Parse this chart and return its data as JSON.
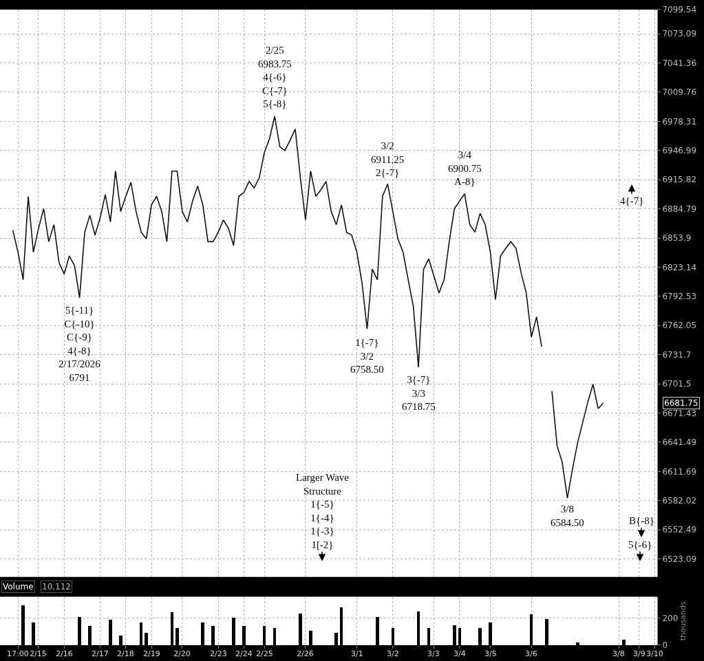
{
  "chart_data": [
    {
      "type": "line",
      "log": "y",
      "grid": true,
      "tick_labels": "y",
      "categories": [
        null,
        "17:00",
        null,
        null,
        null,
        "2/15",
        null,
        null,
        null,
        null,
        "2/16",
        null,
        null,
        null,
        null,
        null,
        null,
        "2/17",
        null,
        null,
        null,
        null,
        "2/18",
        null,
        null,
        null,
        null,
        "2/19",
        null,
        null,
        null,
        null,
        null,
        "2/20",
        null,
        null,
        null,
        null,
        null,
        null,
        "2/23",
        null,
        null,
        null,
        null,
        "2/24",
        null,
        null,
        null,
        "2/25",
        null,
        null,
        null,
        null,
        null,
        null,
        null,
        "2/26",
        null,
        null,
        null,
        null,
        null,
        null,
        null,
        null,
        null,
        "3/1",
        null,
        null,
        null,
        null,
        null,
        null,
        "3/2",
        null,
        null,
        null,
        null,
        null,
        null,
        null,
        "3/3",
        null,
        null,
        null,
        null,
        "3/4",
        null,
        null,
        null,
        null,
        null,
        "3/5",
        null,
        null,
        null,
        null,
        null,
        null,
        null,
        "3/6",
        null,
        null,
        null,
        null,
        null,
        null,
        null,
        null,
        null,
        null,
        null,
        null,
        null,
        null,
        null,
        null,
        "3/8",
        null,
        null,
        null,
        "3/9",
        null,
        null,
        "3/10"
      ],
      "series": [
        {
          "color": "#111111",
          "values": [
            6862,
            6839,
            6810,
            6898,
            6839,
            6864,
            6885,
            6850,
            6868,
            6828,
            6816,
            6835,
            6825,
            6791,
            6860,
            6878,
            6857,
            6875,
            6900,
            6871,
            6925,
            6882,
            6898,
            6913,
            6882,
            6860,
            6853,
            6889,
            6898,
            6882,
            6850,
            6925,
            6925,
            6882,
            6871,
            6893,
            6909,
            6889,
            6850,
            6850,
            6860,
            6873,
            6864,
            6846,
            6898,
            6902,
            6914,
            6907,
            6918,
            6945,
            6960,
            6983.75,
            6951,
            6947,
            6958,
            6970,
            6918,
            6873,
            6925,
            6898,
            6905,
            6914,
            6882,
            6868,
            6889,
            6860,
            6857,
            6839,
            6807,
            6758.5,
            6821,
            6810,
            6898,
            6911.25,
            6882,
            6853,
            6839,
            6810,
            6782,
            6718.75,
            6821,
            6832,
            6814,
            6796,
            6810,
            6850,
            6885,
            6893,
            6900.75,
            6868,
            6860,
            6880,
            6868,
            6839,
            6789,
            6835,
            6843,
            6850,
            6843,
            6817,
            6796,
            6750,
            6771,
            6740,
            null,
            6694,
            6638,
            6621,
            6584.5,
            6614,
            6641,
            6662,
            6683,
            6701,
            6676,
            6681.75,
            null,
            null,
            null,
            null,
            null,
            null,
            null,
            null,
            null,
            null
          ]
        }
      ],
      "ylim": [
        6505,
        7099.54
      ],
      "yticks": [
        6523.09,
        6552.49,
        6582.02,
        6611.69,
        6641.49,
        6671.43,
        6701.5,
        6731.7,
        6762.05,
        6792.53,
        6823.14,
        6853.9,
        6884.79,
        6915.82,
        6946.99,
        6978.31,
        7009.76,
        7041.36,
        7073.09,
        7099.54
      ],
      "annotations": [
        {
          "text": "5{-11}\nC{-10}\nC{-9}\n4{-8}\n2/17/2026\n6791",
          "y": 6791
        },
        {
          "text": "2/25\n6983.75\n4{-6}\nC{-7}\n5{-8}",
          "y": 6983.75
        },
        {
          "text": "3/2\n6911.25\n2{-7}",
          "y": 6911.25
        },
        {
          "text": "1{-7}\n3/2\n6758.50",
          "y": 6758.5
        },
        {
          "text": "3{-7}\n3/3\n6718.75",
          "y": 6718.75
        },
        {
          "text": "3/4\n6900.75\nA-8}",
          "y": 6900.75
        },
        {
          "text": "3/8\n6584.50",
          "y": 6584.5
        },
        "6681.75",
        "4{-7}",
        "B{-8}",
        "5{-6}",
        "Larger Wave\nStructure\n1{-5}\n1{-4}\n1{-3}\n1[-2}"
      ]
    },
    {
      "type": "bar",
      "grid": true,
      "title": "Volume",
      "ylabel": "thousands",
      "annotations": [
        "10,112"
      ],
      "categories": [
        null,
        "17:00",
        null,
        null,
        null,
        "2/15",
        null,
        null,
        null,
        null,
        "2/16",
        null,
        null,
        null,
        null,
        null,
        null,
        "2/17",
        null,
        null,
        null,
        null,
        "2/18",
        null,
        null,
        null,
        null,
        "2/19",
        null,
        null,
        null,
        null,
        null,
        "2/20",
        null,
        null,
        null,
        null,
        null,
        null,
        "2/23",
        null,
        null,
        null,
        null,
        "2/24",
        null,
        null,
        null,
        "2/25",
        null,
        null,
        null,
        null,
        null,
        null,
        null,
        "2/26",
        null,
        null,
        null,
        null,
        null,
        null,
        null,
        null,
        null,
        "3/1",
        null,
        null,
        null,
        null,
        null,
        null,
        "3/2",
        null,
        null,
        null,
        null,
        null,
        null,
        null,
        "3/3",
        null,
        null,
        null,
        null,
        "3/4",
        null,
        null,
        null,
        null,
        null,
        "3/5",
        null,
        null,
        null,
        null,
        null,
        null,
        null,
        "3/6",
        null,
        null,
        null,
        null,
        null,
        null,
        null,
        null,
        null,
        null,
        null,
        null,
        null,
        null,
        null,
        null,
        "3/8",
        null,
        null,
        null,
        "3/9",
        null,
        null,
        "3/10"
      ],
      "series": [
        {
          "color": "#000000",
          "values": [
            null,
            null,
            300,
            null,
            172,
            null,
            null,
            null,
            null,
            null,
            null,
            null,
            null,
            214,
            null,
            145,
            null,
            null,
            null,
            190,
            null,
            76,
            null,
            null,
            null,
            172,
            93,
            null,
            null,
            null,
            null,
            248,
            128,
            null,
            null,
            null,
            null,
            172,
            null,
            145,
            null,
            null,
            null,
            207,
            null,
            145,
            null,
            null,
            null,
            145,
            null,
            128,
            null,
            null,
            null,
            null,
            238,
            null,
            110,
            null,
            null,
            null,
            null,
            93,
            283,
            null,
            null,
            null,
            null,
            null,
            null,
            214,
            null,
            null,
            128,
            null,
            null,
            null,
            null,
            255,
            null,
            128,
            null,
            null,
            null,
            null,
            152,
            128,
            null,
            null,
            null,
            128,
            null,
            172,
            null,
            null,
            null,
            null,
            null,
            null,
            null,
            231,
            null,
            null,
            197,
            null,
            null,
            null,
            null,
            null,
            24,
            null,
            null,
            null,
            null,
            null,
            null,
            null,
            null,
            41,
            null,
            null,
            null,
            null,
            null,
            null
          ]
        }
      ],
      "ylim": [
        0,
        360
      ],
      "yticks": [
        0,
        200
      ]
    }
  ]
}
